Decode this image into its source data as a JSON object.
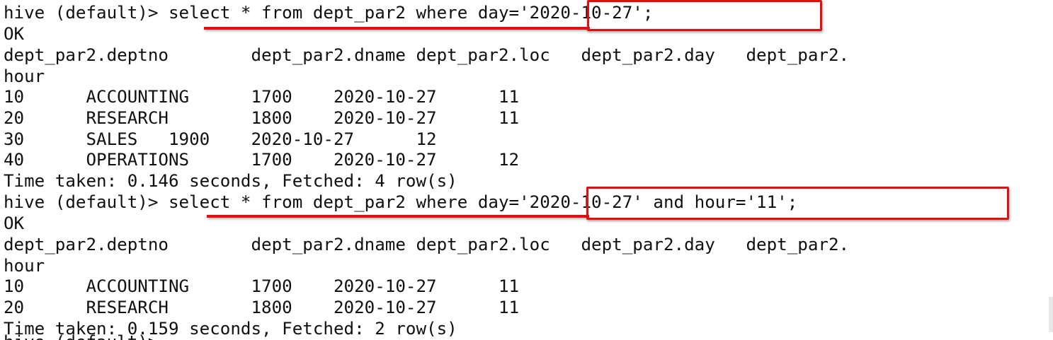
{
  "terminal": {
    "lines": [
      "hive (default)> select * from dept_par2 where day='2020-10-27';",
      "OK",
      "dept_par2.deptno        dept_par2.dname dept_par2.loc   dept_par2.day   dept_par2.",
      "hour",
      "10      ACCOUNTING      1700    2020-10-27      11",
      "20      RESEARCH        1800    2020-10-27      11",
      "30      SALES   1900    2020-10-27      12",
      "40      OPERATIONS      1700    2020-10-27      12",
      "Time taken: 0.146 seconds, Fetched: 4 row(s)",
      "hive (default)> select * from dept_par2 where day='2020-10-27' and hour='11';",
      "OK",
      "dept_par2.deptno        dept_par2.dname dept_par2.loc   dept_par2.day   dept_par2.",
      "hour",
      "10      ACCOUNTING      1700    2020-10-27      11",
      "20      RESEARCH        1800    2020-10-27      11",
      "Time taken: 0.159 seconds, Fetched: 2 row(s)"
    ],
    "partial_line": "hive (default)> "
  },
  "colors": {
    "background": "#ffffff",
    "text": "#101010",
    "annotation": "#e01010"
  }
}
